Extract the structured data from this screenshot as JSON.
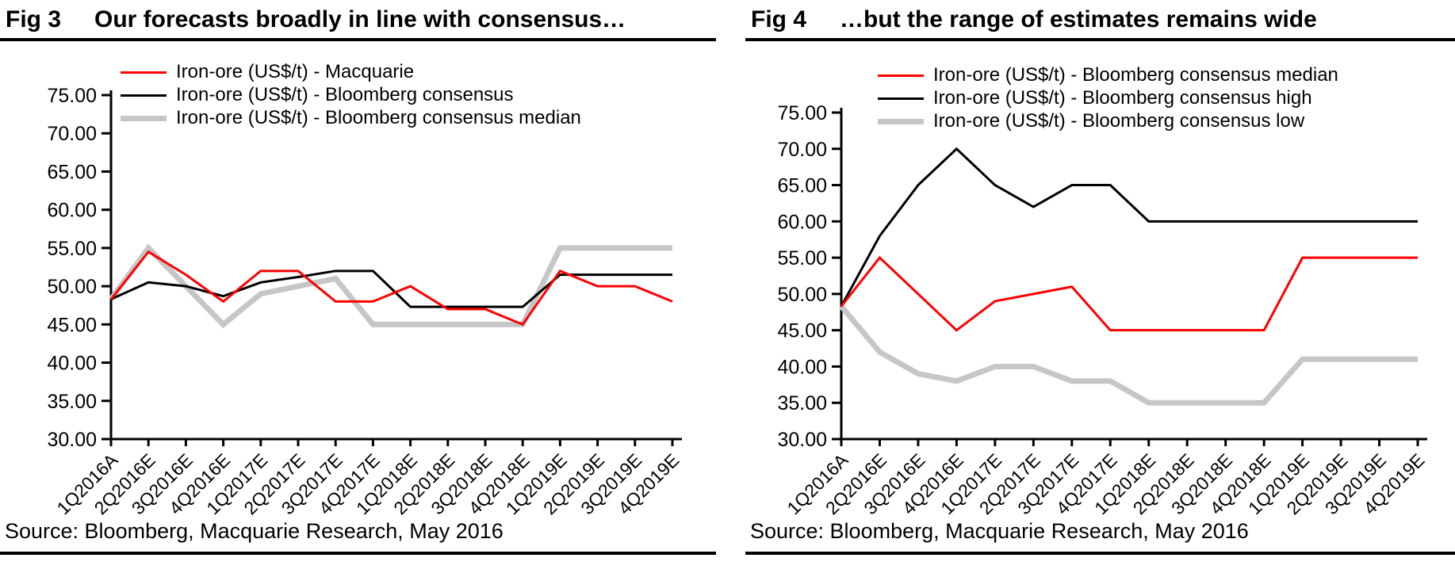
{
  "figures": [
    {
      "label": "Fig 3",
      "title": "Our forecasts broadly in line with consensus…",
      "source": "Source: Bloomberg, Macquarie Research, May 2016"
    },
    {
      "label": "Fig 4",
      "title": "…but the range of estimates remains wide",
      "source": "Source: Bloomberg, Macquarie Research, May 2016"
    }
  ],
  "chart_data": [
    {
      "type": "line",
      "title": "Fig 3  Our forecasts broadly in line with consensus…",
      "categories": [
        "1Q2016A",
        "2Q2016E",
        "3Q2016E",
        "4Q2016E",
        "1Q2017E",
        "2Q2017E",
        "3Q2017E",
        "4Q2017E",
        "1Q2018E",
        "2Q2018E",
        "3Q2018E",
        "4Q2018E",
        "1Q2019E",
        "2Q2019E",
        "3Q2019E",
        "4Q2019E"
      ],
      "series": [
        {
          "name": "Iron-ore (US$/t) - Macquarie",
          "color": "#FF0000",
          "line_width": 3,
          "values": [
            48.3,
            54.5,
            51.5,
            48,
            52,
            52,
            48,
            48,
            50,
            47,
            47,
            45,
            52,
            50,
            50,
            48
          ]
        },
        {
          "name": "Iron-ore (US$/t) - Bloomberg consensus",
          "color": "#000000",
          "line_width": 3,
          "values": [
            48.3,
            50.5,
            50,
            48.7,
            50.5,
            51.2,
            52,
            52,
            47.3,
            47.3,
            47.3,
            47.3,
            51.5,
            51.5,
            51.5,
            51.5
          ]
        },
        {
          "name": "Iron-ore (US$/t) - Bloomberg consensus median",
          "color": "#C6C6C6",
          "line_width": 7,
          "values": [
            48.3,
            55,
            50,
            45,
            49,
            50,
            51,
            45,
            45,
            45,
            45,
            45,
            55,
            55,
            55,
            55
          ]
        }
      ],
      "xlabel": "",
      "ylabel": "",
      "ylim": [
        30,
        75
      ],
      "ytick_interval": 5,
      "ytick_format": "0.00",
      "legend_position": "top-inside",
      "grid": false
    },
    {
      "type": "line",
      "title": "Fig 4  …but the range of estimates remains wide",
      "categories": [
        "1Q2016A",
        "2Q2016E",
        "3Q2016E",
        "4Q2016E",
        "1Q2017E",
        "2Q2017E",
        "3Q2017E",
        "4Q2017E",
        "1Q2018E",
        "2Q2018E",
        "3Q2018E",
        "4Q2018E",
        "1Q2019E",
        "2Q2019E",
        "3Q2019E",
        "4Q2019E"
      ],
      "series": [
        {
          "name": "Iron-ore (US$/t) - Bloomberg consensus median",
          "color": "#FF0000",
          "line_width": 3,
          "values": [
            48.3,
            55,
            50,
            45,
            49,
            50,
            51,
            45,
            45,
            45,
            45,
            45,
            55,
            55,
            55,
            55
          ]
        },
        {
          "name": "Iron-ore (US$/t) - Bloomberg consensus high",
          "color": "#000000",
          "line_width": 3,
          "values": [
            48.3,
            58,
            65,
            70,
            65,
            62,
            65,
            65,
            60,
            60,
            60,
            60,
            60,
            60,
            60,
            60
          ]
        },
        {
          "name": "Iron-ore (US$/t) - Bloomberg consensus low",
          "color": "#C6C6C6",
          "line_width": 7,
          "values": [
            48.3,
            42,
            39,
            38,
            40,
            40,
            38,
            38,
            35,
            35,
            35,
            35,
            41,
            41,
            41,
            41
          ]
        }
      ],
      "xlabel": "",
      "ylabel": "",
      "ylim": [
        30,
        75
      ],
      "ytick_interval": 5,
      "ytick_format": "0.00",
      "legend_position": "top-inside",
      "grid": false
    }
  ]
}
